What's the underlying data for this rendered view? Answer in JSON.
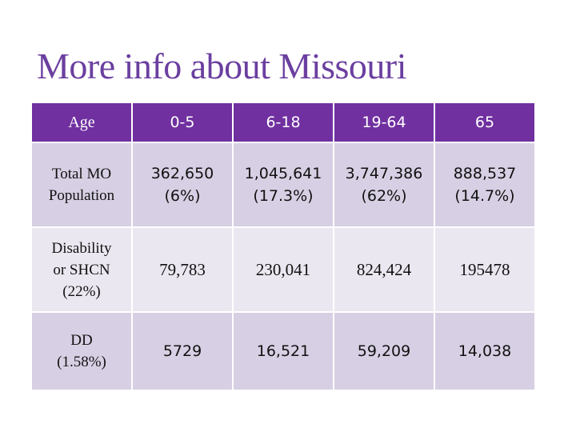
{
  "title": "More info about Missouri",
  "table": {
    "headers": [
      "Age",
      "0-5",
      "6-18",
      "19-64",
      "65"
    ],
    "rows": [
      {
        "label_lines": [
          "Total MO",
          "Population"
        ],
        "cells": [
          {
            "value": "362,650",
            "pct": "(6%)"
          },
          {
            "value": "1,045,641",
            "pct": "(17.3%)"
          },
          {
            "value": "3,747,386",
            "pct": "(62%)"
          },
          {
            "value": "888,537",
            "pct": "(14.7%)"
          }
        ]
      },
      {
        "label_lines": [
          "Disability",
          "or SHCN",
          "(22%)"
        ],
        "cells": [
          "79,783",
          "230,041",
          "824,424",
          "195478"
        ]
      },
      {
        "label_lines": [
          "DD",
          "(1.58%)"
        ],
        "cells": [
          "5729",
          "16,521",
          "59,209",
          "14,038"
        ]
      }
    ]
  },
  "colors": {
    "title": "#6b3fa0",
    "header_bg": "#7030a0",
    "row_dark": "#d7cfe3",
    "row_light": "#ebe7f0"
  }
}
